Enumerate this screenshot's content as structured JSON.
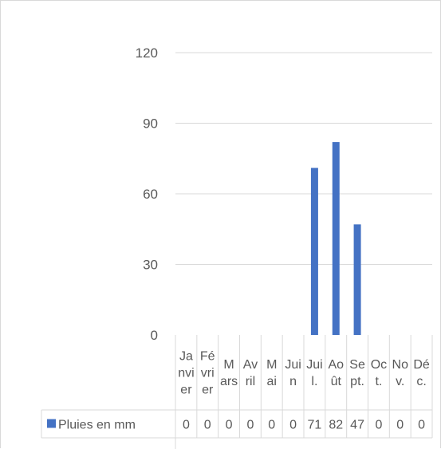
{
  "chart_data": {
    "type": "bar",
    "categories": [
      "Janvier",
      "Février",
      "Mars",
      "Avril",
      "Mai",
      "Juin",
      "Juil.",
      "Août",
      "Sept.",
      "Oct.",
      "Nov.",
      "Déc."
    ],
    "category_lines": [
      [
        "Ja",
        "nvi",
        "er"
      ],
      [
        "Fé",
        "vri",
        "er"
      ],
      [
        "M",
        "ars"
      ],
      [
        "Av",
        "ril"
      ],
      [
        "M",
        "ai"
      ],
      [
        "Jui",
        "n"
      ],
      [
        "Jui",
        "l."
      ],
      [
        "Ao",
        "ût"
      ],
      [
        "Se",
        "pt."
      ],
      [
        "Oc",
        "t."
      ],
      [
        "No",
        "v."
      ],
      [
        "Dé",
        "c."
      ]
    ],
    "series": [
      {
        "name": "Pluies en mm",
        "values": [
          0,
          0,
          0,
          0,
          0,
          0,
          71,
          82,
          47,
          0,
          0,
          0
        ],
        "color": "#4472C4"
      }
    ],
    "ylim": [
      0,
      120
    ],
    "yticks": [
      "0",
      "30",
      "60",
      "90",
      "120"
    ],
    "grid": true,
    "data_table": true,
    "title": "",
    "xlabel": "",
    "ylabel": ""
  }
}
